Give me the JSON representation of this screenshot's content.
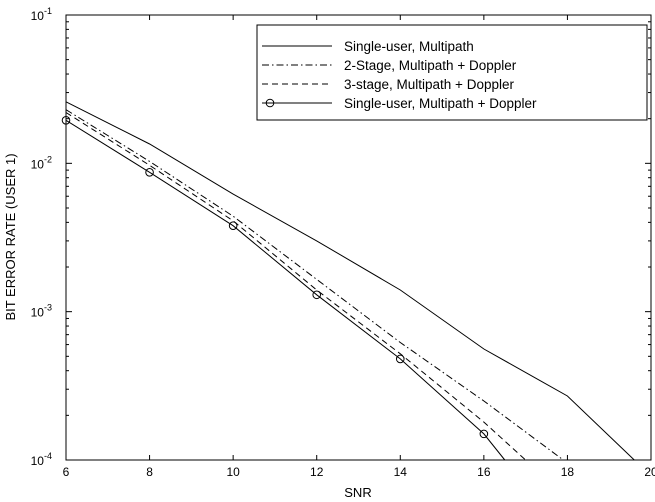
{
  "chart_data": {
    "type": "line",
    "xlabel": "SNR",
    "ylabel": "BIT ERROR RATE (USER 1)",
    "xlim": [
      6,
      20
    ],
    "ylim": [
      0.0001,
      0.1
    ],
    "yscale": "log",
    "x_ticks": [
      6,
      8,
      10,
      12,
      14,
      16,
      18,
      20
    ],
    "y_ticks": [
      {
        "value": 0.1,
        "base": "10",
        "exp": "-1"
      },
      {
        "value": 0.01,
        "base": "10",
        "exp": "-2"
      },
      {
        "value": 0.001,
        "base": "10",
        "exp": "-3"
      },
      {
        "value": 0.0001,
        "base": "10",
        "exp": "-4"
      }
    ],
    "grid": false,
    "legend_position": "top-right",
    "series": [
      {
        "name": "Single-user, Multipath",
        "style": "solid",
        "marker": "none",
        "x": [
          6,
          8,
          10,
          12,
          14,
          16,
          18,
          19.6
        ],
        "y": [
          0.026,
          0.0135,
          0.0062,
          0.003,
          0.0014,
          0.00056,
          0.00027,
          0.0001
        ]
      },
      {
        "name": "2-Stage, Multipath + Doppler",
        "style": "dashdot",
        "marker": "none",
        "x": [
          6,
          8,
          10,
          12,
          14,
          16,
          17.9
        ],
        "y": [
          0.023,
          0.0103,
          0.0044,
          0.00165,
          0.00062,
          0.00025,
          0.0001
        ]
      },
      {
        "name": "3-stage, Multipath + Doppler",
        "style": "dashed",
        "marker": "none",
        "x": [
          6,
          8,
          10,
          12,
          14,
          16,
          17
        ],
        "y": [
          0.022,
          0.0097,
          0.0041,
          0.0014,
          0.00052,
          0.00018,
          0.0001
        ]
      },
      {
        "name": "Single-user, Multipath + Doppler",
        "style": "solid",
        "marker": "circle",
        "x": [
          6,
          8,
          10,
          12,
          14,
          16,
          16.5
        ],
        "y": [
          0.0195,
          0.0087,
          0.0038,
          0.0013,
          0.00048,
          0.00015,
          0.0001
        ]
      }
    ]
  }
}
